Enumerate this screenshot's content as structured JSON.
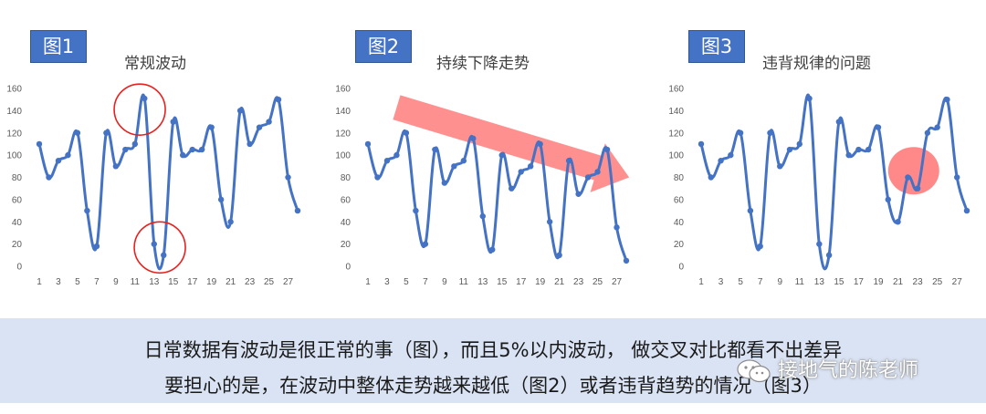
{
  "chart_data": [
    {
      "type": "line",
      "badge": "图1",
      "title": "常规波动",
      "x": [
        1,
        2,
        3,
        4,
        5,
        6,
        7,
        8,
        9,
        10,
        11,
        12,
        13,
        14,
        15,
        16,
        17,
        18,
        19,
        20,
        21,
        22,
        23,
        24,
        25,
        26,
        27,
        28
      ],
      "values": [
        110,
        80,
        95,
        100,
        120,
        50,
        18,
        120,
        90,
        105,
        110,
        151,
        20,
        10,
        130,
        100,
        105,
        105,
        125,
        60,
        40,
        140,
        110,
        125,
        130,
        150,
        80,
        50
      ],
      "xticks": [
        1,
        3,
        5,
        7,
        9,
        11,
        13,
        15,
        17,
        19,
        21,
        23,
        25,
        27
      ],
      "yticks": [
        0,
        20,
        40,
        60,
        80,
        100,
        120,
        140,
        160
      ],
      "ylim": [
        0,
        160
      ],
      "annotations": [
        {
          "type": "circle",
          "x": 11.5,
          "y": 141
        },
        {
          "type": "circle",
          "x": 13.6,
          "y": 17
        }
      ],
      "line_color": "#4472c4"
    },
    {
      "type": "line",
      "badge": "图2",
      "title": "持续下降走势",
      "x": [
        1,
        2,
        3,
        4,
        5,
        6,
        7,
        8,
        9,
        10,
        11,
        12,
        13,
        14,
        15,
        16,
        17,
        18,
        19,
        20,
        21,
        22,
        23,
        24,
        25,
        26,
        27,
        28
      ],
      "values": [
        110,
        80,
        95,
        100,
        120,
        50,
        20,
        105,
        75,
        90,
        95,
        115,
        45,
        15,
        100,
        70,
        85,
        90,
        110,
        40,
        10,
        95,
        65,
        80,
        85,
        105,
        35,
        5
      ],
      "xticks": [
        1,
        3,
        5,
        7,
        9,
        11,
        13,
        15,
        17,
        19,
        21,
        23,
        25,
        27
      ],
      "yticks": [
        0,
        20,
        40,
        60,
        80,
        100,
        120,
        140,
        160
      ],
      "ylim": [
        0,
        160
      ],
      "annotations": [
        {
          "type": "arrow",
          "from": [
            4,
            143
          ],
          "to": [
            28.3,
            80
          ]
        }
      ],
      "line_color": "#4472c4"
    },
    {
      "type": "line",
      "badge": "图3",
      "title": "违背规律的问题",
      "x": [
        1,
        2,
        3,
        4,
        5,
        6,
        7,
        8,
        9,
        10,
        11,
        12,
        13,
        14,
        15,
        16,
        17,
        18,
        19,
        20,
        21,
        22,
        23,
        24,
        25,
        26,
        27,
        28
      ],
      "values": [
        110,
        80,
        95,
        100,
        120,
        50,
        18,
        120,
        90,
        105,
        110,
        151,
        20,
        10,
        130,
        100,
        105,
        105,
        125,
        60,
        40,
        80,
        70,
        120,
        125,
        150,
        80,
        50
      ],
      "xticks": [
        1,
        3,
        5,
        7,
        9,
        11,
        13,
        15,
        17,
        19,
        21,
        23,
        25,
        27
      ],
      "yticks": [
        0,
        20,
        40,
        60,
        80,
        100,
        120,
        140,
        160
      ],
      "ylim": [
        0,
        160
      ],
      "annotations": [
        {
          "type": "blob",
          "x": 22.6,
          "y": 86
        }
      ],
      "line_color": "#4472c4"
    }
  ],
  "caption": {
    "line1": "日常数据有波动是很正常的事（图），而且5%以内波动， 做交叉对比都看不出差异",
    "line2": "要担心的是，在波动中整体走势越来越低（图2）或者违背趋势的情况（图3）"
  },
  "watermark": {
    "text": "接地气的陈老师",
    "icon": "wechat-icon"
  },
  "colors": {
    "line": "#4472c4",
    "annotation": "#e8211f",
    "arrow": "#ff6b6b",
    "caption_bg": "#dae3f3",
    "badge_bg": "#4472c4"
  }
}
